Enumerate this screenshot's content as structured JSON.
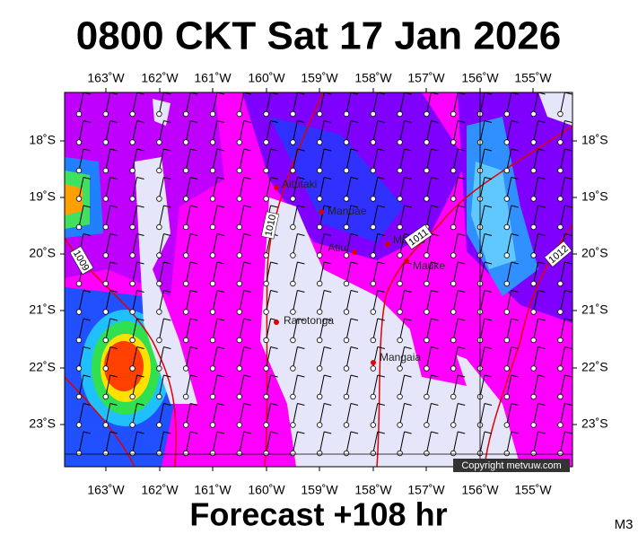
{
  "header": {
    "title": "0800 CKT Sat 17 Jan 2026"
  },
  "map": {
    "lon_labels": [
      "163˚W",
      "162˚W",
      "161˚W",
      "160˚W",
      "159˚W",
      "158˚W",
      "157˚W",
      "156˚W",
      "155˚W"
    ],
    "lat_labels": [
      "18˚S",
      "19˚S",
      "20˚S",
      "21˚S",
      "22˚S",
      "23˚S"
    ],
    "places": [
      "Aitutaki",
      "Manuae",
      "Mitiaro",
      "Atiu",
      "Mauke",
      "Rarotonga",
      "Mangaia"
    ],
    "isobars": [
      "1010",
      "1011",
      "1012",
      "1009"
    ],
    "copyright": "Copyright metvuw.com"
  },
  "footer": {
    "subtitle": "Forecast +108 hr",
    "code": "M3"
  }
}
